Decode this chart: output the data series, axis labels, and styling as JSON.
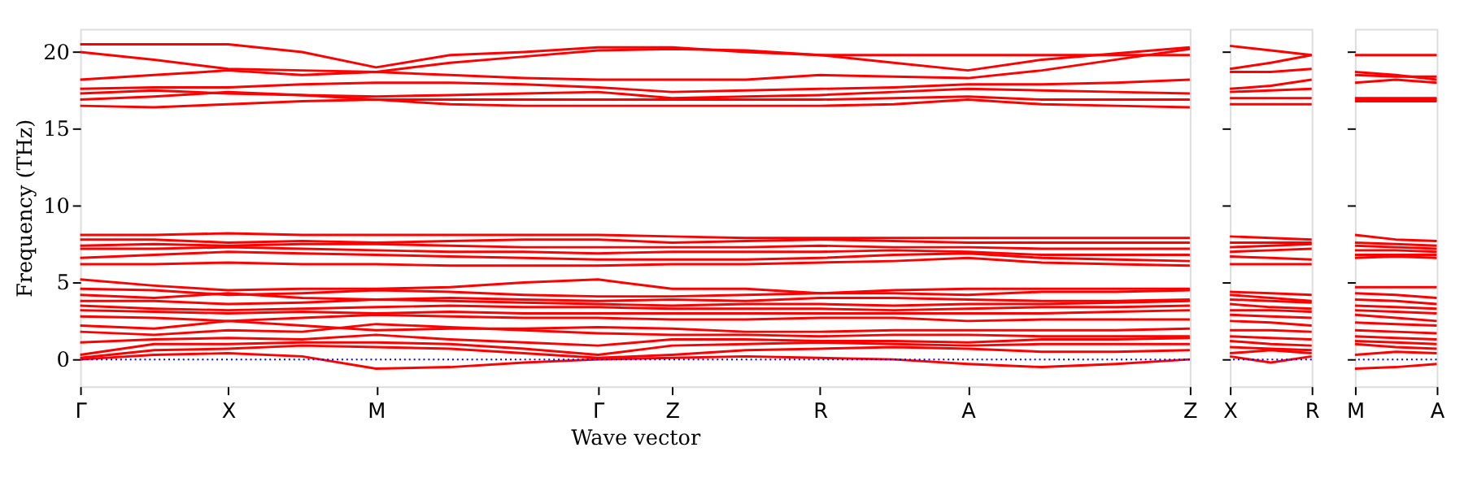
{
  "chart_data": [
    {
      "type": "line",
      "ylabel": "Frequency (THz)",
      "xlabel": "Wave vector",
      "grid": false,
      "legend": false,
      "marker": "none",
      "line_style": "solid",
      "categories": [
        "Γ",
        null,
        "X",
        null,
        "M",
        null,
        null,
        "Γ",
        "Z",
        null,
        "R",
        null,
        "A",
        null,
        null,
        "Z"
      ],
      "ylim": [
        -1.75,
        21.5
      ],
      "yticks": [
        0,
        5,
        10,
        15,
        20
      ],
      "ref_lines": [
        {
          "axis": "y",
          "value": 0,
          "color": "#0000ff",
          "line_style": "dotted"
        }
      ],
      "series": [
        {
          "color": "#ff0000",
          "values": [
            20.5,
            20.5,
            20.5,
            20.0,
            19.0,
            19.8,
            20.0,
            20.3,
            20.3,
            20.0,
            19.8,
            19.3,
            18.8,
            19.5,
            19.9,
            20.3
          ]
        },
        {
          "color": "#ff0000",
          "values": [
            20.0,
            19.5,
            18.9,
            18.8,
            18.7,
            19.3,
            19.7,
            20.1,
            20.2,
            20.1,
            19.8,
            19.8,
            19.8,
            19.8,
            19.8,
            19.8
          ]
        },
        {
          "color": "#ff0000",
          "values": [
            18.2,
            18.5,
            18.8,
            18.5,
            18.7,
            18.5,
            18.3,
            18.2,
            18.2,
            18.2,
            18.5,
            18.4,
            18.3,
            18.8,
            19.5,
            20.2
          ]
        },
        {
          "color": "#ff0000",
          "values": [
            17.6,
            17.7,
            17.7,
            17.9,
            18.0,
            18.0,
            17.9,
            17.7,
            17.4,
            17.5,
            17.6,
            17.7,
            17.9,
            17.9,
            18.0,
            18.2
          ]
        },
        {
          "color": "#ff0000",
          "values": [
            17.3,
            17.5,
            17.3,
            17.2,
            17.1,
            17.2,
            17.3,
            17.4,
            17.0,
            17.1,
            17.2,
            17.4,
            17.6,
            17.5,
            17.4,
            17.3
          ]
        },
        {
          "color": "#ff0000",
          "values": [
            16.9,
            17.1,
            17.4,
            17.2,
            16.9,
            16.9,
            16.9,
            16.9,
            16.9,
            16.9,
            16.9,
            17.0,
            17.1,
            16.9,
            16.9,
            16.9
          ]
        },
        {
          "color": "#ff0000",
          "values": [
            16.5,
            16.4,
            16.6,
            16.8,
            16.9,
            16.6,
            16.5,
            16.5,
            16.5,
            16.5,
            16.5,
            16.6,
            16.9,
            16.6,
            16.5,
            16.4
          ]
        },
        {
          "color": "#ff0000",
          "values": [
            8.1,
            8.1,
            8.2,
            8.1,
            8.1,
            8.1,
            8.1,
            8.1,
            8.0,
            7.9,
            7.9,
            7.9,
            7.9,
            7.9,
            7.9,
            7.9
          ]
        },
        {
          "color": "#ff0000",
          "values": [
            7.8,
            7.8,
            7.6,
            7.7,
            7.6,
            7.7,
            7.8,
            7.8,
            7.6,
            7.7,
            7.8,
            7.7,
            7.6,
            7.6,
            7.6,
            7.6
          ]
        },
        {
          "color": "#ff0000",
          "values": [
            7.4,
            7.5,
            7.4,
            7.5,
            7.5,
            7.4,
            7.3,
            7.3,
            7.3,
            7.3,
            7.4,
            7.3,
            7.3,
            7.2,
            7.2,
            7.2
          ]
        },
        {
          "color": "#ff0000",
          "values": [
            7.2,
            7.2,
            7.3,
            7.2,
            7.1,
            7.0,
            7.0,
            6.9,
            7.0,
            7.0,
            7.0,
            7.1,
            7.0,
            6.8,
            6.8,
            6.8
          ]
        },
        {
          "color": "#ff0000",
          "values": [
            6.6,
            6.8,
            7.0,
            6.9,
            6.8,
            6.7,
            6.6,
            6.5,
            6.5,
            6.5,
            6.6,
            6.8,
            6.9,
            6.6,
            6.5,
            6.4
          ]
        },
        {
          "color": "#ff0000",
          "values": [
            6.2,
            6.2,
            6.3,
            6.2,
            6.2,
            6.1,
            6.1,
            6.1,
            6.2,
            6.2,
            6.3,
            6.4,
            6.6,
            6.3,
            6.2,
            6.1
          ]
        },
        {
          "color": "#ff0000",
          "values": [
            5.2,
            4.8,
            4.5,
            4.6,
            4.6,
            4.7,
            5.0,
            5.2,
            4.6,
            4.6,
            4.3,
            4.5,
            4.6,
            4.6,
            4.6,
            4.6
          ]
        },
        {
          "color": "#ff0000",
          "values": [
            4.6,
            4.5,
            4.2,
            4.3,
            4.5,
            4.4,
            4.2,
            4.1,
            4.1,
            4.2,
            4.3,
            4.3,
            4.2,
            4.4,
            4.4,
            4.5
          ]
        },
        {
          "color": "#ff0000",
          "values": [
            4.2,
            4.0,
            4.3,
            4.0,
            3.9,
            4.0,
            3.9,
            3.8,
            3.9,
            3.8,
            4.0,
            4.0,
            3.9,
            3.8,
            3.8,
            3.9
          ]
        },
        {
          "color": "#ff0000",
          "values": [
            3.8,
            3.8,
            3.6,
            3.7,
            3.9,
            3.8,
            3.7,
            3.6,
            3.5,
            3.6,
            3.6,
            3.5,
            3.6,
            3.6,
            3.7,
            3.8
          ]
        },
        {
          "color": "#ff0000",
          "values": [
            3.5,
            3.3,
            3.2,
            3.3,
            3.4,
            3.5,
            3.4,
            3.4,
            3.3,
            3.3,
            3.3,
            3.2,
            3.3,
            3.4,
            3.4,
            3.5
          ]
        },
        {
          "color": "#ff0000",
          "values": [
            3.2,
            3.1,
            3.0,
            3.1,
            3.0,
            3.1,
            3.0,
            3.0,
            3.0,
            3.0,
            3.0,
            3.0,
            3.0,
            3.0,
            3.1,
            3.2
          ]
        },
        {
          "color": "#ff0000",
          "values": [
            2.8,
            2.7,
            2.5,
            2.7,
            2.9,
            2.8,
            2.7,
            2.7,
            2.6,
            2.6,
            2.7,
            2.7,
            2.5,
            2.6,
            2.6,
            2.6
          ]
        },
        {
          "color": "#ff0000",
          "values": [
            2.2,
            2.0,
            2.5,
            2.2,
            1.9,
            2.0,
            2.0,
            2.1,
            2.0,
            1.8,
            1.8,
            1.9,
            1.9,
            1.9,
            1.9,
            2.0
          ]
        },
        {
          "color": "#ff0000",
          "values": [
            1.8,
            1.6,
            1.9,
            1.8,
            2.3,
            2.1,
            1.9,
            1.7,
            1.6,
            1.6,
            1.5,
            1.6,
            1.6,
            1.5,
            1.5,
            1.5
          ]
        },
        {
          "color": "#ff0000",
          "values": [
            1.1,
            1.3,
            1.4,
            1.3,
            1.6,
            1.3,
            1.1,
            0.9,
            1.3,
            1.3,
            1.2,
            1.2,
            1.1,
            1.3,
            1.3,
            1.4
          ]
        },
        {
          "color": "#ff0000",
          "values": [
            0.3,
            1.0,
            1.0,
            1.1,
            1.1,
            1.0,
            0.7,
            0.3,
            0.9,
            1.0,
            1.1,
            1.0,
            0.9,
            1.0,
            1.0,
            1.0
          ]
        },
        {
          "color": "#ff0000",
          "values": [
            0.1,
            0.6,
            0.7,
            0.9,
            0.8,
            0.7,
            0.4,
            0.1,
            0.3,
            0.6,
            0.7,
            0.8,
            0.7,
            0.5,
            0.5,
            0.6
          ]
        },
        {
          "color": "#ff0000",
          "values": [
            0.0,
            0.3,
            0.4,
            0.2,
            -0.6,
            -0.5,
            -0.2,
            0.0,
            0.1,
            0.2,
            0.1,
            0.0,
            -0.3,
            -0.5,
            -0.3,
            0.0
          ]
        }
      ]
    },
    {
      "type": "line",
      "grid": false,
      "legend": false,
      "marker": "none",
      "line_style": "solid",
      "tick_labels": "x",
      "categories": [
        "X",
        null,
        "R"
      ],
      "ylim": [
        -1.75,
        21.5
      ],
      "yticks": [
        {
          "value": 0,
          "label": null
        },
        {
          "value": 5,
          "label": null
        },
        {
          "value": 10,
          "label": null
        },
        {
          "value": 15,
          "label": null
        },
        {
          "value": 20,
          "label": null
        }
      ],
      "ref_lines": [
        {
          "axis": "y",
          "value": 0,
          "color": "#0000ff",
          "line_style": "dotted"
        }
      ],
      "series": [
        {
          "color": "#ff0000",
          "values": [
            20.4,
            20.1,
            19.8
          ]
        },
        {
          "color": "#ff0000",
          "values": [
            18.9,
            19.3,
            19.8
          ]
        },
        {
          "color": "#ff0000",
          "values": [
            18.7,
            18.7,
            18.9
          ]
        },
        {
          "color": "#ff0000",
          "values": [
            17.6,
            17.8,
            18.2
          ]
        },
        {
          "color": "#ff0000",
          "values": [
            17.4,
            17.5,
            17.6
          ]
        },
        {
          "color": "#ff0000",
          "values": [
            17.0,
            17.0,
            17.0
          ]
        },
        {
          "color": "#ff0000",
          "values": [
            16.6,
            16.6,
            16.6
          ]
        },
        {
          "color": "#ff0000",
          "values": [
            8.0,
            7.9,
            7.8
          ]
        },
        {
          "color": "#ff0000",
          "values": [
            7.6,
            7.6,
            7.6
          ]
        },
        {
          "color": "#ff0000",
          "values": [
            7.3,
            7.4,
            7.5
          ]
        },
        {
          "color": "#ff0000",
          "values": [
            7.0,
            7.1,
            7.2
          ]
        },
        {
          "color": "#ff0000",
          "values": [
            6.7,
            6.6,
            6.5
          ]
        },
        {
          "color": "#ff0000",
          "values": [
            6.2,
            6.2,
            6.2
          ]
        },
        {
          "color": "#ff0000",
          "values": [
            4.4,
            4.3,
            4.2
          ]
        },
        {
          "color": "#ff0000",
          "values": [
            4.2,
            4.0,
            3.8
          ]
        },
        {
          "color": "#ff0000",
          "values": [
            3.9,
            3.8,
            3.7
          ]
        },
        {
          "color": "#ff0000",
          "values": [
            3.6,
            3.4,
            3.3
          ]
        },
        {
          "color": "#ff0000",
          "values": [
            3.2,
            3.2,
            3.1
          ]
        },
        {
          "color": "#ff0000",
          "values": [
            2.9,
            2.8,
            2.7
          ]
        },
        {
          "color": "#ff0000",
          "values": [
            2.5,
            2.4,
            2.2
          ]
        },
        {
          "color": "#ff0000",
          "values": [
            1.9,
            1.9,
            1.8
          ]
        },
        {
          "color": "#ff0000",
          "values": [
            1.5,
            1.4,
            1.3
          ]
        },
        {
          "color": "#ff0000",
          "values": [
            1.2,
            1.0,
            0.9
          ]
        },
        {
          "color": "#ff0000",
          "values": [
            0.8,
            0.7,
            0.6
          ]
        },
        {
          "color": "#ff0000",
          "values": [
            0.4,
            0.6,
            0.4
          ]
        },
        {
          "color": "#ff0000",
          "values": [
            0.2,
            -0.2,
            0.2
          ]
        }
      ]
    },
    {
      "type": "line",
      "grid": false,
      "legend": false,
      "marker": "none",
      "line_style": "solid",
      "tick_labels": "x",
      "categories": [
        "M",
        null,
        "A"
      ],
      "ylim": [
        -1.75,
        21.5
      ],
      "yticks": [
        {
          "value": 0,
          "label": null
        },
        {
          "value": 5,
          "label": null
        },
        {
          "value": 10,
          "label": null
        },
        {
          "value": 15,
          "label": null
        },
        {
          "value": 20,
          "label": null
        }
      ],
      "ref_lines": [
        {
          "axis": "y",
          "value": 0,
          "color": "#0000ff",
          "line_style": "dotted"
        }
      ],
      "series": [
        {
          "color": "#ff0000",
          "values": [
            19.8,
            19.8,
            19.8
          ]
        },
        {
          "color": "#ff0000",
          "values": [
            18.7,
            18.5,
            18.2
          ]
        },
        {
          "color": "#ff0000",
          "values": [
            18.5,
            18.4,
            18.4
          ]
        },
        {
          "color": "#ff0000",
          "values": [
            18.0,
            18.2,
            18.0
          ]
        },
        {
          "color": "#ff0000",
          "values": [
            17.0,
            17.0,
            17.0
          ]
        },
        {
          "color": "#ff0000",
          "values": [
            16.9,
            16.9,
            16.9
          ]
        },
        {
          "color": "#ff0000",
          "values": [
            16.8,
            16.8,
            16.8
          ]
        },
        {
          "color": "#ff0000",
          "values": [
            8.1,
            7.8,
            7.7
          ]
        },
        {
          "color": "#ff0000",
          "values": [
            7.6,
            7.5,
            7.4
          ]
        },
        {
          "color": "#ff0000",
          "values": [
            7.4,
            7.3,
            7.2
          ]
        },
        {
          "color": "#ff0000",
          "values": [
            7.1,
            7.1,
            7.0
          ]
        },
        {
          "color": "#ff0000",
          "values": [
            6.8,
            6.8,
            6.8
          ]
        },
        {
          "color": "#ff0000",
          "values": [
            6.6,
            6.7,
            6.6
          ]
        },
        {
          "color": "#ff0000",
          "values": [
            4.7,
            4.7,
            4.7
          ]
        },
        {
          "color": "#ff0000",
          "values": [
            4.3,
            4.2,
            4.0
          ]
        },
        {
          "color": "#ff0000",
          "values": [
            3.9,
            3.8,
            3.6
          ]
        },
        {
          "color": "#ff0000",
          "values": [
            3.5,
            3.4,
            3.3
          ]
        },
        {
          "color": "#ff0000",
          "values": [
            3.2,
            3.1,
            3.0
          ]
        },
        {
          "color": "#ff0000",
          "values": [
            2.9,
            2.7,
            2.5
          ]
        },
        {
          "color": "#ff0000",
          "values": [
            2.4,
            2.3,
            2.2
          ]
        },
        {
          "color": "#ff0000",
          "values": [
            1.9,
            1.8,
            1.7
          ]
        },
        {
          "color": "#ff0000",
          "values": [
            1.5,
            1.4,
            1.3
          ]
        },
        {
          "color": "#ff0000",
          "values": [
            1.2,
            1.1,
            1.0
          ]
        },
        {
          "color": "#ff0000",
          "values": [
            1.0,
            0.8,
            0.7
          ]
        },
        {
          "color": "#ff0000",
          "values": [
            0.3,
            0.5,
            0.4
          ]
        },
        {
          "color": "#ff0000",
          "values": [
            -0.6,
            -0.5,
            -0.3
          ]
        }
      ]
    }
  ]
}
